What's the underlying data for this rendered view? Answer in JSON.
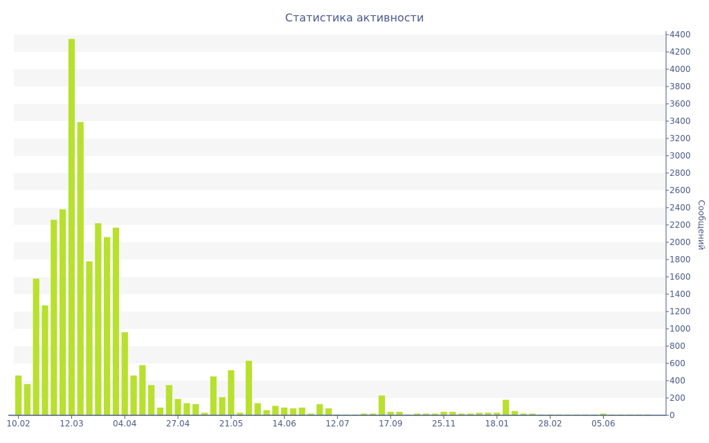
{
  "chart_data": {
    "type": "bar",
    "title": "Статистика активности",
    "xlabel": "",
    "ylabel": "Сообщений",
    "ylim": [
      0,
      4400
    ],
    "y_axis_side": "right",
    "y_ticks": [
      0,
      200,
      400,
      600,
      800,
      1000,
      1200,
      1400,
      1600,
      1800,
      2000,
      2200,
      2400,
      2600,
      2800,
      3000,
      3200,
      3400,
      3600,
      3800,
      4000,
      4200,
      4400
    ],
    "x_tick_labels": [
      {
        "label": "10.02",
        "index": 0
      },
      {
        "label": "12.03",
        "index": 6
      },
      {
        "label": "04.04",
        "index": 12
      },
      {
        "label": "27.04",
        "index": 18
      },
      {
        "label": "21.05",
        "index": 24
      },
      {
        "label": "14.06",
        "index": 30
      },
      {
        "label": "12.07",
        "index": 36
      },
      {
        "label": "17.09",
        "index": 42
      },
      {
        "label": "25.11",
        "index": 48
      },
      {
        "label": "18.01",
        "index": 54
      },
      {
        "label": "28.02",
        "index": 60
      },
      {
        "label": "05.06",
        "index": 66
      }
    ],
    "grid": "horizontal-bands",
    "band_color": "#f6f6f6",
    "bar_color": "#b8e02e",
    "axis_color": "#4a5a8a",
    "values": [
      460,
      360,
      1580,
      1270,
      2260,
      2380,
      4350,
      3390,
      1780,
      2220,
      2060,
      2170,
      960,
      460,
      580,
      350,
      90,
      350,
      190,
      140,
      130,
      30,
      450,
      210,
      520,
      30,
      630,
      140,
      60,
      110,
      90,
      80,
      90,
      20,
      130,
      80,
      10,
      10,
      10,
      20,
      20,
      230,
      40,
      40,
      10,
      20,
      20,
      20,
      40,
      40,
      20,
      20,
      30,
      30,
      30,
      180,
      50,
      20,
      20,
      10,
      10,
      10,
      10,
      10,
      10,
      10,
      20,
      10,
      10,
      10,
      10,
      10
    ]
  }
}
